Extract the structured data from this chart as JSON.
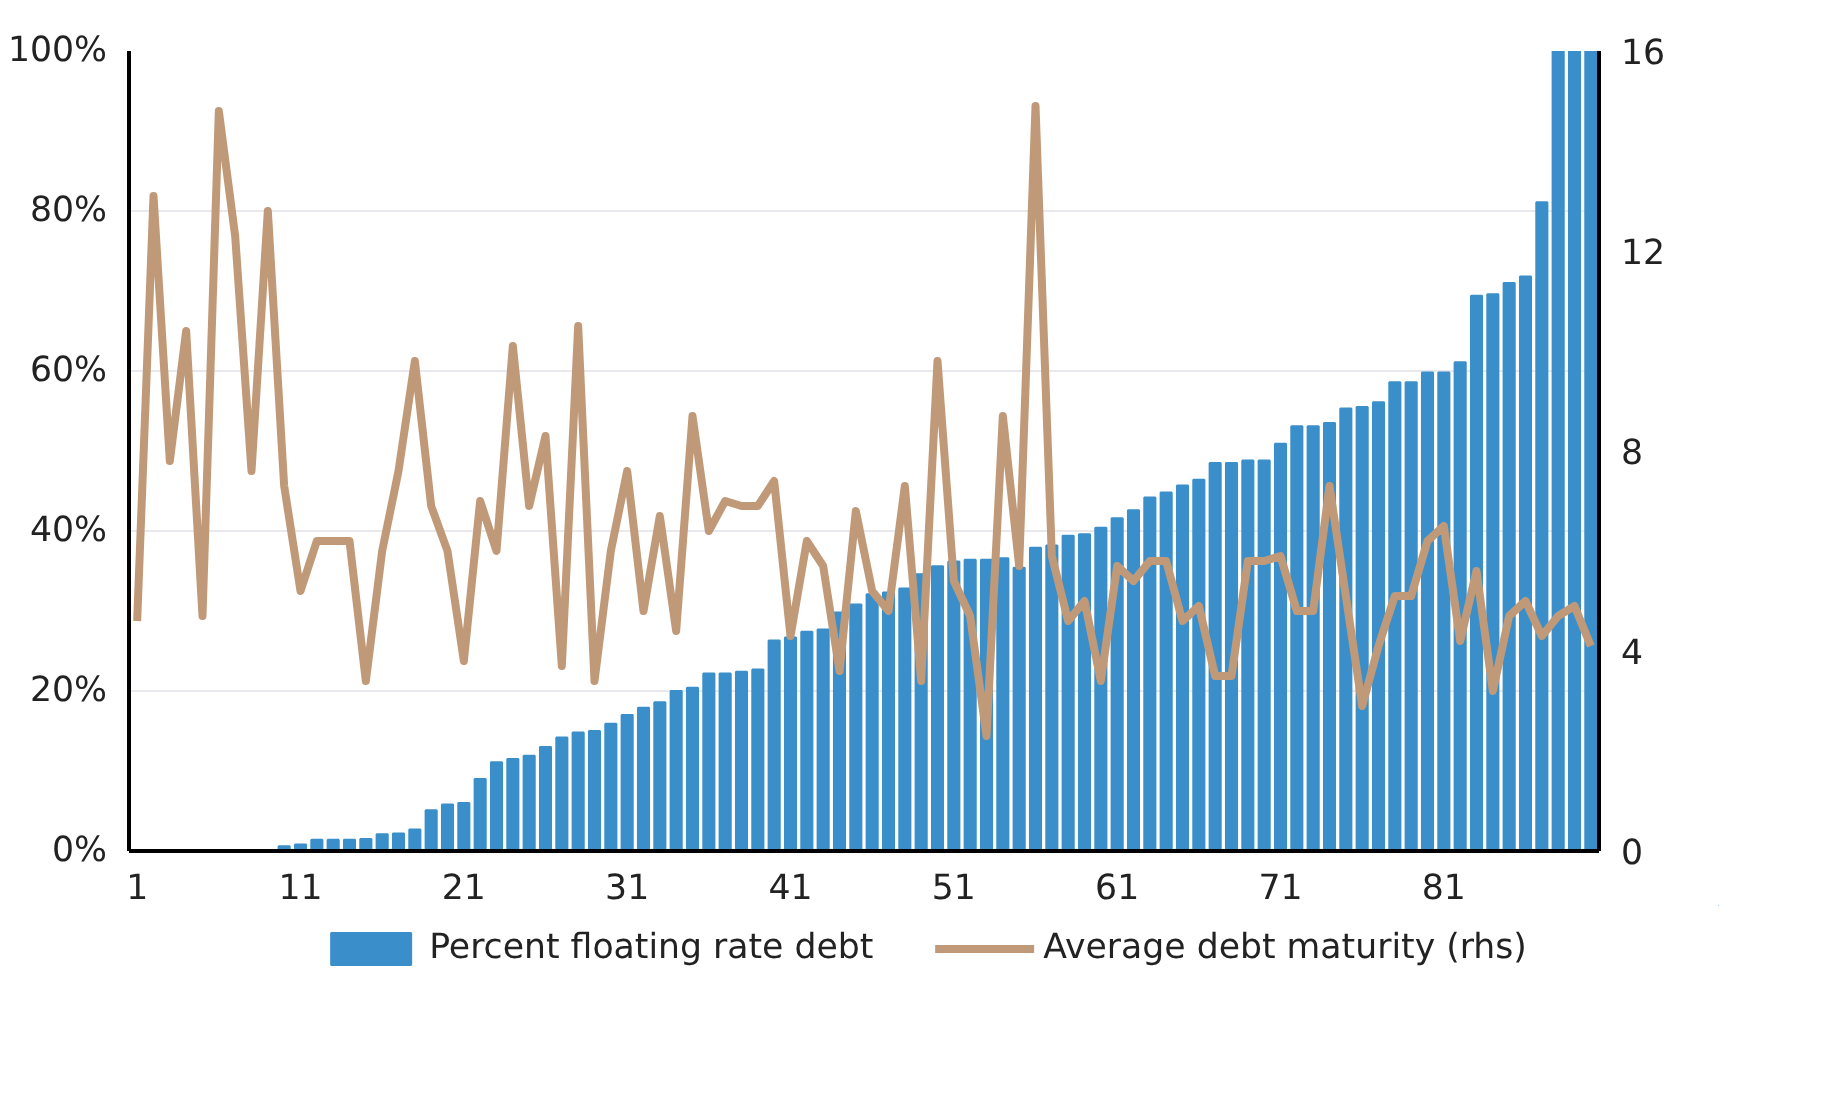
{
  "chart_data": {
    "type": "bar",
    "categories": [
      "1",
      null,
      null,
      null,
      null,
      null,
      null,
      null,
      null,
      null,
      "11",
      null,
      null,
      null,
      null,
      null,
      null,
      null,
      null,
      null,
      "21",
      null,
      null,
      null,
      null,
      null,
      null,
      null,
      null,
      null,
      "31",
      null,
      null,
      null,
      null,
      null,
      null,
      null,
      null,
      null,
      "41",
      null,
      null,
      null,
      null,
      null,
      null,
      null,
      null,
      null,
      "51",
      null,
      null,
      null,
      null,
      null,
      null,
      null,
      null,
      null,
      "61",
      null,
      null,
      null,
      null,
      null,
      null,
      null,
      null,
      null,
      "71",
      null,
      null,
      null,
      null,
      null,
      null,
      null,
      null,
      null,
      "81",
      null,
      null,
      null,
      null,
      null,
      null,
      null,
      null,
      null
    ],
    "series": [
      {
        "name": "Percent floating rate debt",
        "color": "#3a8fca",
        "values": [
          0,
          0,
          0,
          0,
          0,
          0,
          0,
          0,
          0,
          0.6,
          0.8,
          1.4,
          1.4,
          1.4,
          1.5,
          2.1,
          2.2,
          2.7,
          5.1,
          5.8,
          6.0,
          9.0,
          11.1,
          11.5,
          11.9,
          13.0,
          14.2,
          14.8,
          15.0,
          15.9,
          17.0,
          17.9,
          18.6,
          20.0,
          20.4,
          22.2,
          22.2,
          22.4,
          22.7,
          26.3,
          26.7,
          27.4,
          27.7,
          29.8,
          30.8,
          32.1,
          32.3,
          32.8,
          34.6,
          35.6,
          36.2,
          36.4,
          36.4,
          36.6,
          35.4,
          37.9,
          38.2,
          39.4,
          39.6,
          40.4,
          41.6,
          42.6,
          44.2,
          44.8,
          45.7,
          46.4,
          48.5,
          48.5,
          48.8,
          48.8,
          50.9,
          53.1,
          53.1,
          53.5,
          55.3,
          55.5,
          56.1,
          58.6,
          58.6,
          59.8,
          59.8,
          61.1,
          69.4,
          69.6,
          71.0,
          71.8,
          81.1,
          100,
          100,
          100
        ]
      },
      {
        "name": "Average debt maturity (rhs)",
        "type": "line",
        "axis": "y2",
        "color": "#c09a78",
        "values": [
          4.6,
          13.1,
          7.8,
          10.4,
          4.7,
          14.8,
          12.3,
          7.6,
          12.8,
          7.3,
          5.2,
          6.2,
          6.2,
          6.2,
          3.4,
          6.0,
          7.6,
          9.8,
          6.9,
          6.0,
          3.8,
          7.0,
          6.0,
          10.1,
          6.9,
          8.3,
          3.7,
          10.5,
          3.4,
          6.0,
          7.6,
          4.8,
          6.7,
          4.4,
          8.7,
          6.4,
          7.0,
          6.9,
          6.9,
          7.4,
          4.3,
          6.2,
          5.7,
          3.6,
          6.8,
          5.2,
          4.8,
          7.3,
          3.4,
          9.8,
          5.4,
          4.7,
          2.3,
          8.7,
          5.7,
          14.9,
          5.9,
          4.6,
          5.0,
          3.4,
          5.7,
          5.4,
          5.8,
          5.8,
          4.6,
          4.9,
          3.5,
          3.5,
          5.8,
          5.8,
          5.9,
          4.8,
          4.8,
          7.3,
          5.1,
          2.9,
          4.1,
          5.1,
          5.1,
          6.2,
          6.5,
          4.2,
          5.6,
          3.2,
          4.7,
          5.0,
          4.3,
          4.7,
          4.9,
          4.1
        ]
      }
    ],
    "ylim": [
      0,
      100
    ],
    "yticks": [
      {
        "value": 0,
        "label": "0%"
      },
      {
        "value": 20,
        "label": "20%"
      },
      {
        "value": 40,
        "label": "40%"
      },
      {
        "value": 60,
        "label": "60%"
      },
      {
        "value": 80,
        "label": "80%"
      },
      {
        "value": 100,
        "label": "100%"
      }
    ],
    "y2lim": [
      0,
      16
    ],
    "y2ticks": [
      0,
      4,
      8,
      12,
      16
    ],
    "grid": "y",
    "legend": "bottom"
  }
}
